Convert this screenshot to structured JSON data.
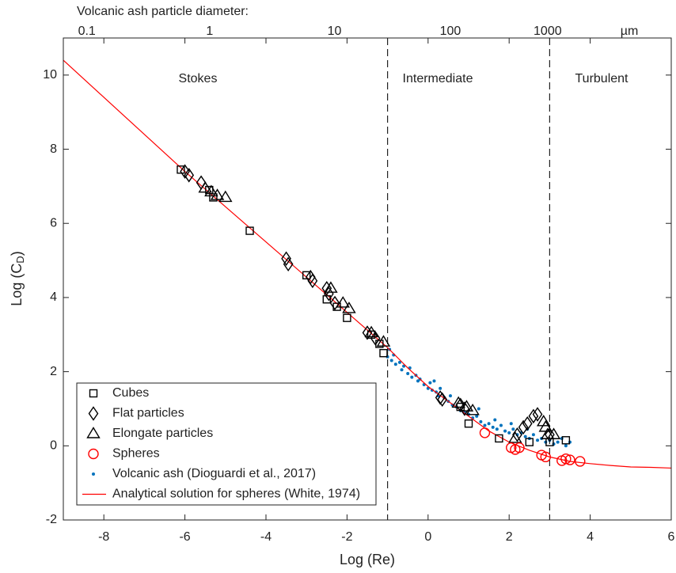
{
  "chart_data": {
    "type": "scatter",
    "title": "Volcanic ash particle diameter:",
    "xlabel": "Log (Re)",
    "ylabel": [
      "Log (C",
      "D",
      ")"
    ],
    "xlim": [
      -9,
      6
    ],
    "ylim": [
      -2,
      11
    ],
    "xticks": [
      -8,
      -6,
      -4,
      -2,
      0,
      2,
      4,
      6
    ],
    "yticks": [
      -2,
      0,
      2,
      4,
      6,
      8,
      10
    ],
    "x2ticks": [
      {
        "value": -8.42,
        "label": "0.1"
      },
      {
        "value": -5.39,
        "label": "1"
      },
      {
        "value": -2.31,
        "label": "10"
      },
      {
        "value": 0.55,
        "label": "100"
      },
      {
        "value": 2.95,
        "label": "1000"
      }
    ],
    "x2unit": "µm",
    "vlines": [
      -1,
      3
    ],
    "annotations": [
      "Stokes",
      "Intermediate",
      "Turbulent"
    ],
    "series": [
      {
        "name": "Cubes",
        "marker": "square",
        "color": "#000000",
        "x": [
          -6.1,
          -5.4,
          -5.3,
          -4.4,
          -3.0,
          -2.5,
          -2.25,
          -2.0,
          -1.4,
          -1.2,
          -1.1,
          0.8,
          1.0,
          1.75,
          2.5,
          3.0,
          3.4
        ],
        "values": [
          7.45,
          6.9,
          6.7,
          5.8,
          4.6,
          3.95,
          3.75,
          3.45,
          3.0,
          2.75,
          2.5,
          1.05,
          0.6,
          0.2,
          0.1,
          0.1,
          0.15
        ]
      },
      {
        "name": "Flat particles",
        "marker": "diamond",
        "color": "#000000",
        "x": [
          -6.0,
          -5.9,
          -5.6,
          -3.5,
          -3.45,
          -2.9,
          -2.85,
          -2.5,
          -2.45,
          -2.3,
          -1.5,
          -1.3,
          0.3,
          0.35,
          0.8,
          0.9,
          2.2,
          2.35,
          2.45,
          2.6,
          2.7,
          3.0
        ],
        "values": [
          7.4,
          7.3,
          7.1,
          5.05,
          4.9,
          4.55,
          4.45,
          4.25,
          4.1,
          3.85,
          3.05,
          2.9,
          1.3,
          1.25,
          1.1,
          1.0,
          0.3,
          0.5,
          0.6,
          0.8,
          0.85,
          0.3
        ]
      },
      {
        "name": "Elongate particles",
        "marker": "triangle",
        "color": "#000000",
        "x": [
          -5.5,
          -5.35,
          -5.2,
          -5.0,
          -2.4,
          -2.1,
          -1.95,
          -1.4,
          -1.1,
          0.75,
          0.95,
          1.1,
          2.15,
          2.85,
          2.9,
          2.95,
          3.1
        ],
        "values": [
          6.95,
          6.85,
          6.75,
          6.7,
          4.25,
          3.85,
          3.7,
          3.05,
          2.8,
          1.15,
          1.05,
          0.95,
          0.2,
          0.65,
          0.5,
          0.3,
          0.3
        ]
      },
      {
        "name": "Spheres",
        "marker": "circle",
        "color": "#ff0000",
        "x": [
          1.4,
          2.05,
          2.15,
          2.25,
          2.8,
          2.9,
          3.3,
          3.4,
          3.5,
          3.75
        ],
        "values": [
          0.35,
          -0.05,
          -0.1,
          -0.05,
          -0.25,
          -0.3,
          -0.4,
          -0.35,
          -0.38,
          -0.42
        ]
      },
      {
        "name": "Volcanic ash (Dioguardi et al., 2017)",
        "marker": "dot",
        "color": "#0072bd",
        "x": [
          -1.0,
          -0.9,
          -0.85,
          -0.8,
          -0.7,
          -0.65,
          -0.6,
          -0.5,
          -0.45,
          -0.4,
          -0.3,
          -0.25,
          -0.2,
          -0.1,
          0.0,
          0.05,
          0.1,
          0.2,
          0.25,
          0.3,
          0.4,
          0.5,
          0.55,
          0.6,
          0.7,
          0.8,
          0.9,
          1.0,
          1.1,
          1.2,
          1.3,
          1.4,
          1.5,
          1.6,
          1.7,
          1.8,
          1.9,
          2.0,
          2.1,
          2.2,
          2.3,
          2.4,
          2.5,
          2.6,
          2.7,
          2.8,
          2.9,
          3.0,
          3.1,
          3.2,
          3.3,
          3.4,
          3.5,
          -0.95,
          0.15,
          1.25,
          1.65,
          2.05,
          2.45
        ],
        "values": [
          2.4,
          2.3,
          2.45,
          2.2,
          2.25,
          2.05,
          2.15,
          1.95,
          2.1,
          1.85,
          1.9,
          1.75,
          1.8,
          1.65,
          1.55,
          1.7,
          1.5,
          1.45,
          1.35,
          1.55,
          1.3,
          1.2,
          1.35,
          1.1,
          1.05,
          0.95,
          0.9,
          0.85,
          0.75,
          0.8,
          0.65,
          0.55,
          0.6,
          0.5,
          0.45,
          0.55,
          0.4,
          0.35,
          0.45,
          0.3,
          0.35,
          0.25,
          0.2,
          0.3,
          0.15,
          0.2,
          0.1,
          0.15,
          0.05,
          0.1,
          0.2,
          0.0,
          0.1,
          2.6,
          1.75,
          1.0,
          0.7,
          0.6,
          0.45
        ]
      },
      {
        "name": "Analytical solution for spheres (White, 1974)",
        "marker": "line",
        "color": "#ff0000",
        "x": [
          -9,
          -8,
          -7,
          -6,
          -5,
          -4,
          -3,
          -2,
          -1,
          -0.5,
          0,
          0.5,
          1,
          1.5,
          2,
          2.5,
          3,
          3.5,
          4,
          4.5,
          5,
          5.5,
          6
        ],
        "values": [
          10.4,
          9.4,
          8.4,
          7.4,
          6.45,
          5.5,
          4.55,
          3.6,
          2.65,
          2.1,
          1.6,
          1.2,
          0.8,
          0.4,
          0.1,
          -0.12,
          -0.3,
          -0.42,
          -0.48,
          -0.53,
          -0.57,
          -0.58,
          -0.6
        ]
      }
    ]
  }
}
